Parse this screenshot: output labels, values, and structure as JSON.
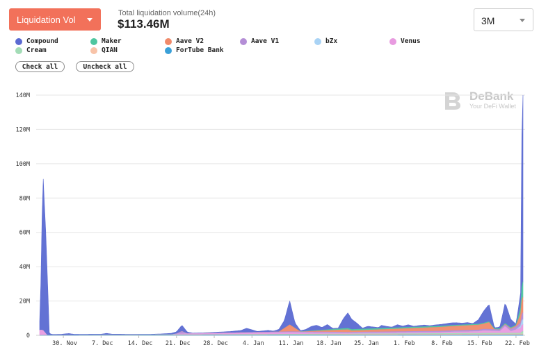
{
  "header": {
    "metric_label": "Liquidation Vol",
    "total_label": "Total liquidation volume(24h)",
    "total_value": "$113.46M",
    "range_value": "3M"
  },
  "legend": {
    "items": [
      {
        "name": "Compound",
        "color": "#5b6ad2"
      },
      {
        "name": "Maker",
        "color": "#4fc6a0"
      },
      {
        "name": "Aave V2",
        "color": "#f08a6a"
      },
      {
        "name": "Aave V1",
        "color": "#b48ed6"
      },
      {
        "name": "bZx",
        "color": "#a9d3f5"
      },
      {
        "name": "Venus",
        "color": "#e89be0"
      },
      {
        "name": "Cream",
        "color": "#a3dcb6"
      },
      {
        "name": "QIAN",
        "color": "#f8c3a8"
      },
      {
        "name": "ForTube Bank",
        "color": "#3aa0d8"
      }
    ],
    "check_all": "Check all",
    "uncheck_all": "Uncheck all"
  },
  "watermark": {
    "title": "DeBank",
    "subtitle": "Your DeFi Wallet"
  },
  "chart_data": {
    "type": "area",
    "stacked": true,
    "y_ticks": [
      "0",
      "20M",
      "40M",
      "60M",
      "80M",
      "100M",
      "120M",
      "140M"
    ],
    "ylim": [
      0,
      140
    ],
    "x_ticks": [
      "30. Nov",
      "7. Dec",
      "14. Dec",
      "21. Dec",
      "28. Dec",
      "4. Jan",
      "11. Jan",
      "18. Jan",
      "25. Jan",
      "1. Feb",
      "8. Feb",
      "15. Feb",
      "22. Feb"
    ],
    "x_tick_days": [
      30,
      37,
      44,
      51,
      58,
      65,
      72,
      79,
      86,
      93,
      100,
      107,
      114
    ],
    "xlim_days": [
      25.6,
      115.3
    ],
    "grid": true,
    "series": [
      {
        "name": "Compound",
        "color": "#5b6ad2",
        "points": [
          [
            25.7,
            5
          ],
          [
            26.2,
            93
          ],
          [
            26.8,
            55
          ],
          [
            27.4,
            1
          ],
          [
            28,
            0.5
          ],
          [
            29.5,
            0.5
          ],
          [
            31,
            1
          ],
          [
            32,
            0.5
          ],
          [
            33,
            0.5
          ],
          [
            35,
            0.5
          ],
          [
            37,
            0.5
          ],
          [
            38,
            1
          ],
          [
            39,
            0.5
          ],
          [
            40,
            0.5
          ],
          [
            43,
            0.3
          ],
          [
            46,
            0.3
          ],
          [
            48,
            0.5
          ],
          [
            50,
            0.8
          ],
          [
            51,
            1.2
          ],
          [
            52,
            3.5
          ],
          [
            53,
            1
          ],
          [
            54,
            0.3
          ],
          [
            56,
            0.3
          ],
          [
            58,
            0.5
          ],
          [
            61,
            0.8
          ],
          [
            63,
            1.3
          ],
          [
            64,
            2.5
          ],
          [
            65,
            1.5
          ],
          [
            66,
            0.5
          ],
          [
            68,
            1
          ],
          [
            69,
            0.5
          ],
          [
            70,
            1.5
          ],
          [
            71,
            4.5
          ],
          [
            72,
            14
          ],
          [
            73,
            3
          ],
          [
            74,
            0.5
          ],
          [
            75,
            1
          ],
          [
            76,
            2.5
          ],
          [
            77,
            3
          ],
          [
            78,
            1.5
          ],
          [
            79,
            3
          ],
          [
            80,
            0.5
          ],
          [
            81,
            0.5
          ],
          [
            82,
            6
          ],
          [
            82.8,
            9
          ],
          [
            83.5,
            6
          ],
          [
            84.5,
            3.5
          ],
          [
            85.5,
            0.5
          ],
          [
            86.5,
            1.5
          ],
          [
            87.5,
            1
          ],
          [
            88.5,
            0.5
          ],
          [
            89,
            1.8
          ],
          [
            90,
            1
          ],
          [
            91,
            0.5
          ],
          [
            92,
            1.8
          ],
          [
            93,
            0.8
          ],
          [
            94,
            1.5
          ],
          [
            95,
            0.5
          ],
          [
            96,
            0.8
          ],
          [
            97,
            1
          ],
          [
            98,
            0.5
          ],
          [
            99,
            0.8
          ],
          [
            100,
            1
          ],
          [
            101,
            1.2
          ],
          [
            102,
            1.5
          ],
          [
            103,
            1.4
          ],
          [
            104,
            1
          ],
          [
            105,
            1.2
          ],
          [
            106,
            0.5
          ],
          [
            107,
            2.5
          ],
          [
            108,
            7
          ],
          [
            109,
            10
          ],
          [
            110,
            0.5
          ],
          [
            111,
            1
          ],
          [
            112,
            12
          ],
          [
            113,
            5
          ],
          [
            114,
            0.5
          ],
          [
            115,
            10
          ],
          [
            115.1,
            113.5
          ]
        ]
      },
      {
        "name": "Maker",
        "color": "#4fc6a0",
        "points": [
          [
            25.7,
            0
          ],
          [
            72,
            0
          ],
          [
            82.8,
            0.8
          ],
          [
            108,
            0.5
          ],
          [
            114,
            0.5
          ],
          [
            115,
            4
          ],
          [
            115.1,
            9
          ]
        ]
      },
      {
        "name": "Aave V2",
        "color": "#f08a6a",
        "points": [
          [
            25.7,
            0
          ],
          [
            70,
            0
          ],
          [
            72,
            4
          ],
          [
            74,
            0
          ],
          [
            82.8,
            1.5
          ],
          [
            83.5,
            0.8
          ],
          [
            108,
            3
          ],
          [
            109,
            4
          ],
          [
            110,
            0
          ],
          [
            114,
            0.5
          ],
          [
            115,
            6
          ],
          [
            115.1,
            9
          ]
        ]
      },
      {
        "name": "Aave V1",
        "color": "#b48ed6",
        "points": [
          [
            25.7,
            0
          ],
          [
            51,
            0
          ],
          [
            52,
            1.5
          ],
          [
            53,
            0
          ],
          [
            72,
            0.5
          ],
          [
            82.8,
            0.5
          ],
          [
            112,
            1
          ],
          [
            115,
            2
          ],
          [
            115.1,
            4
          ]
        ]
      },
      {
        "name": "bZx",
        "color": "#a9d3f5",
        "points": [
          [
            25.7,
            0
          ],
          [
            114,
            0
          ],
          [
            115,
            1.5
          ],
          [
            115.1,
            3
          ]
        ]
      },
      {
        "name": "Venus",
        "color": "#e89be0",
        "points": [
          [
            25.7,
            3
          ],
          [
            26.2,
            3
          ],
          [
            27,
            0
          ],
          [
            50,
            0
          ],
          [
            51,
            0.5
          ],
          [
            72,
            1
          ],
          [
            82.8,
            0.5
          ],
          [
            100,
            0.6
          ],
          [
            102,
            0.8
          ],
          [
            107,
            1
          ],
          [
            108,
            1.5
          ],
          [
            111,
            1
          ],
          [
            112,
            4
          ],
          [
            113,
            1
          ],
          [
            115,
            3
          ],
          [
            115.1,
            4
          ]
        ]
      },
      {
        "name": "Cream",
        "color": "#a3dcb6",
        "points": [
          [
            25.7,
            0
          ],
          [
            82.8,
            0.3
          ],
          [
            108,
            0.5
          ],
          [
            115,
            0.5
          ],
          [
            115.1,
            1.5
          ]
        ]
      },
      {
        "name": "QIAN",
        "color": "#f8c3a8",
        "points": [
          [
            25.7,
            0
          ],
          [
            115.1,
            0.5
          ]
        ]
      },
      {
        "name": "ForTube Bank",
        "color": "#3aa0d8",
        "points": [
          [
            25.7,
            0
          ],
          [
            115.1,
            0.3
          ]
        ]
      }
    ]
  }
}
